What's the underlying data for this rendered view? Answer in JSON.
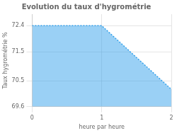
{
  "chart_data": {
    "type": "area",
    "title": "Evolution du taux d'hygrométrie",
    "xlabel": "heure par heure",
    "ylabel": "Taux hygrométrie %",
    "x": [
      0,
      1,
      2
    ],
    "values": [
      72.4,
      72.4,
      70.2
    ],
    "line_style": "dotted",
    "xlim": [
      0,
      2
    ],
    "ylim": [
      69.6,
      72.8
    ],
    "xticks": [
      0,
      1,
      2
    ],
    "yticks": [
      69.6,
      70.5,
      71.5,
      72.4
    ],
    "grid": true
  }
}
